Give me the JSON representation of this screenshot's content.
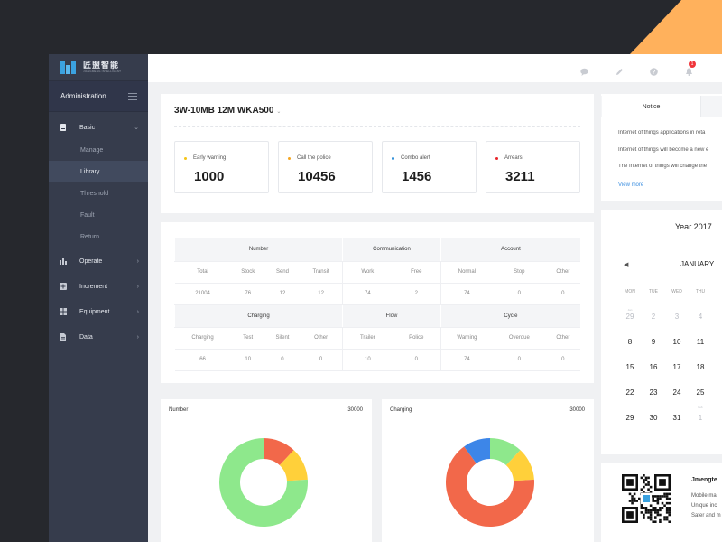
{
  "brand": {
    "name": "匠盟智能",
    "subtitle": "JIANGMENG INTELLIGENT"
  },
  "sidebar": {
    "header": "Administration",
    "groups": [
      {
        "label": "Basic",
        "icon": "document-icon",
        "expanded": true,
        "items": [
          "Manage",
          "Library",
          "Threshold",
          "Fault",
          "Return"
        ],
        "active": "Library"
      },
      {
        "label": "Operate",
        "icon": "bar-chart-icon"
      },
      {
        "label": "Increment",
        "icon": "plus-square-icon"
      },
      {
        "label": "Equipment",
        "icon": "grid-icon"
      },
      {
        "label": "Data",
        "icon": "file-icon"
      }
    ]
  },
  "topbar": {
    "icons": [
      "chat-icon",
      "pencil-icon",
      "help-icon",
      "bell-icon"
    ],
    "notification_count": "1"
  },
  "device": {
    "title": "3W-10MB 12M WKA500",
    "stats": [
      {
        "label": "Early warning",
        "value": "1000",
        "color": "#f5c518"
      },
      {
        "label": "Call the police",
        "value": "10456",
        "color": "#f5a623"
      },
      {
        "label": "Combo alert",
        "value": "1456",
        "color": "#2f8fd8"
      },
      {
        "label": "Arrears",
        "value": "3211",
        "color": "#e8262b"
      }
    ]
  },
  "table": {
    "row1": {
      "groups": [
        "Number",
        "Communication",
        "Account"
      ],
      "headers": [
        "Total",
        "Stock",
        "Send",
        "Transit",
        "Work",
        "Free",
        "Normal",
        "Stop",
        "Other"
      ],
      "values": [
        "21004",
        "76",
        "12",
        "12",
        "74",
        "2",
        "74",
        "0",
        "0"
      ]
    },
    "row2": {
      "groups": [
        "Charging",
        "Flow",
        "Cycle"
      ],
      "headers": [
        "Charging",
        "Test",
        "Silent",
        "Other",
        "Trailer",
        "Police",
        "Warning",
        "Overdue",
        "Other"
      ],
      "values": [
        "66",
        "10",
        "0",
        "0",
        "10",
        "0",
        "74",
        "0",
        "0"
      ]
    }
  },
  "donuts": [
    {
      "title": "Number",
      "total": "30000",
      "slices": [
        {
          "value": 12,
          "color": "#f2684a"
        },
        {
          "value": 12,
          "color": "#ffd03a"
        },
        {
          "value": 76,
          "color": "#8ee88c"
        }
      ]
    },
    {
      "title": "Charging",
      "total": "30000",
      "slices": [
        {
          "value": 12,
          "color": "#8ee88c"
        },
        {
          "value": 12,
          "color": "#ffd03a"
        },
        {
          "value": 66,
          "color": "#f2684a"
        },
        {
          "value": 10,
          "color": "#3d86e8"
        }
      ]
    }
  ],
  "notice": {
    "tab": "Notice",
    "lines": [
      "Internet of things applications in reta",
      "Internet of things will become a new e",
      "The Internet of things will change the"
    ],
    "more": "View more"
  },
  "calendar": {
    "year": "Year 2017",
    "month": "JANUARY",
    "weekdays": [
      "MON",
      "TUE",
      "WED",
      "THU"
    ],
    "prev_days": [
      "29",
      "2",
      "3",
      "4"
    ],
    "prev_month_label": "Jan",
    "weeks": [
      [
        "8",
        "9",
        "10",
        "11"
      ],
      [
        "15",
        "16",
        "17",
        "18"
      ],
      [
        "22",
        "23",
        "24",
        "25"
      ],
      [
        "29",
        "30",
        "31",
        "1"
      ]
    ],
    "next_month_label": "Feb"
  },
  "qr": {
    "title": "Jmengte",
    "lines": [
      "Mobile ma",
      "Unique inc",
      "Safer and m"
    ]
  }
}
